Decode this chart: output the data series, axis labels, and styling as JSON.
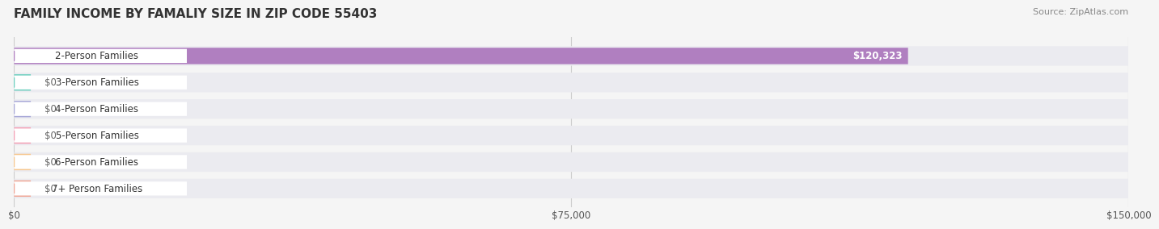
{
  "title": "FAMILY INCOME BY FAMALIY SIZE IN ZIP CODE 55403",
  "source": "Source: ZipAtlas.com",
  "categories": [
    "2-Person Families",
    "3-Person Families",
    "4-Person Families",
    "5-Person Families",
    "6-Person Families",
    "7+ Person Families"
  ],
  "values": [
    120323,
    0,
    0,
    0,
    0,
    0
  ],
  "bar_colors": [
    "#b07fc0",
    "#6ecfbf",
    "#a9a9d8",
    "#f4a0b5",
    "#f6c890",
    "#f0a898"
  ],
  "label_colors": [
    "#b07fc0",
    "#6ecfbf",
    "#a9a9d8",
    "#f4a0b5",
    "#f6c890",
    "#f0a898"
  ],
  "value_labels": [
    "$120,323",
    "$0",
    "$0",
    "$0",
    "$0",
    "$0"
  ],
  "xlim": [
    0,
    150000
  ],
  "xticks": [
    0,
    75000,
    150000
  ],
  "xtick_labels": [
    "$0",
    "$75,000",
    "$150,000"
  ],
  "background_color": "#f5f5f5",
  "bar_background": "#e8e8ee",
  "title_fontsize": 11,
  "source_fontsize": 8,
  "label_fontsize": 8.5
}
